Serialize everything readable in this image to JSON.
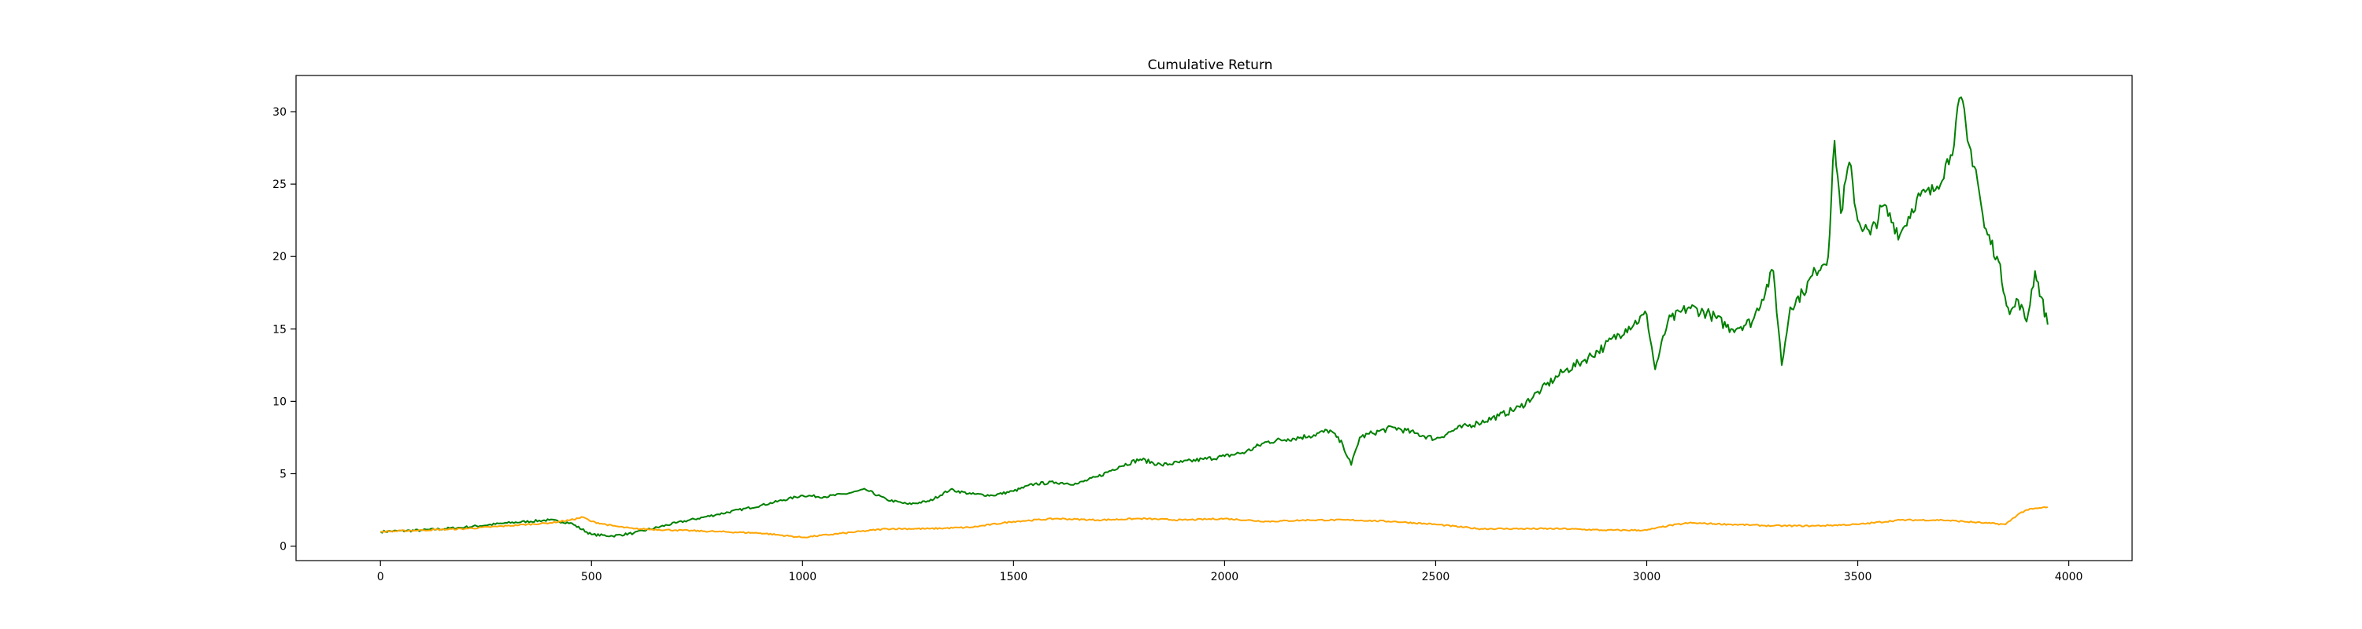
{
  "chart_data": {
    "type": "line",
    "title": "Cumulative Return",
    "xlabel": "",
    "ylabel": "",
    "xlim": [
      -200,
      4150
    ],
    "ylim": [
      -1,
      32.5
    ],
    "xticks": [
      0,
      500,
      1000,
      1500,
      2000,
      2500,
      3000,
      3500,
      4000
    ],
    "yticks": [
      0,
      5,
      10,
      15,
      20,
      25,
      30
    ],
    "grid": false,
    "legend": "none",
    "series": [
      {
        "color": "#008000",
        "x": [
          0,
          100,
          200,
          300,
          400,
          450,
          500,
          550,
          600,
          700,
          800,
          900,
          1000,
          1050,
          1100,
          1150,
          1200,
          1250,
          1300,
          1350,
          1400,
          1450,
          1500,
          1550,
          1600,
          1650,
          1700,
          1750,
          1800,
          1850,
          1900,
          1950,
          2000,
          2050,
          2100,
          2150,
          2200,
          2250,
          2280,
          2300,
          2320,
          2350,
          2400,
          2450,
          2500,
          2550,
          2600,
          2650,
          2700,
          2750,
          2800,
          2850,
          2900,
          2950,
          3000,
          3020,
          3050,
          3100,
          3150,
          3200,
          3250,
          3300,
          3320,
          3340,
          3370,
          3400,
          3430,
          3445,
          3460,
          3480,
          3500,
          3530,
          3560,
          3600,
          3640,
          3680,
          3720,
          3745,
          3760,
          3780,
          3800,
          3830,
          3860,
          3880,
          3900,
          3920,
          3950
        ],
        "y": [
          1.0,
          1.1,
          1.3,
          1.6,
          1.8,
          1.6,
          0.8,
          0.7,
          0.9,
          1.6,
          2.2,
          2.8,
          3.5,
          3.4,
          3.6,
          3.9,
          3.2,
          2.9,
          3.1,
          3.9,
          3.6,
          3.5,
          3.8,
          4.3,
          4.4,
          4.3,
          4.8,
          5.5,
          6.0,
          5.6,
          5.8,
          6.0,
          6.2,
          6.5,
          7.2,
          7.4,
          7.6,
          8.0,
          7.0,
          5.6,
          7.5,
          7.8,
          8.2,
          7.8,
          7.4,
          8.1,
          8.5,
          9.0,
          9.6,
          10.8,
          12.0,
          12.8,
          13.8,
          15.0,
          16.0,
          12.2,
          15.5,
          16.5,
          16.0,
          15.0,
          15.5,
          19.0,
          12.5,
          16.5,
          17.5,
          19.0,
          20.0,
          28.0,
          23.0,
          26.5,
          22.5,
          21.5,
          23.5,
          21.5,
          24.0,
          24.5,
          27.0,
          31.0,
          28.0,
          26.0,
          22.0,
          20.0,
          16.0,
          17.0,
          15.5,
          19.0,
          15.3
        ]
      },
      {
        "color": "#ffa500",
        "x": [
          0,
          100,
          200,
          300,
          400,
          450,
          480,
          500,
          550,
          600,
          700,
          800,
          900,
          1000,
          1100,
          1200,
          1300,
          1400,
          1500,
          1600,
          1700,
          1800,
          1900,
          2000,
          2100,
          2200,
          2300,
          2400,
          2500,
          2600,
          2700,
          2800,
          2900,
          3000,
          3050,
          3100,
          3200,
          3300,
          3400,
          3500,
          3600,
          3700,
          3800,
          3850,
          3880,
          3900,
          3950
        ],
        "y": [
          1.0,
          1.1,
          1.2,
          1.4,
          1.6,
          1.8,
          2.0,
          1.7,
          1.4,
          1.2,
          1.1,
          1.0,
          0.9,
          0.6,
          0.9,
          1.2,
          1.2,
          1.3,
          1.7,
          1.9,
          1.8,
          1.9,
          1.8,
          1.9,
          1.7,
          1.8,
          1.8,
          1.7,
          1.5,
          1.2,
          1.2,
          1.2,
          1.1,
          1.1,
          1.4,
          1.6,
          1.5,
          1.4,
          1.4,
          1.5,
          1.8,
          1.8,
          1.6,
          1.5,
          2.2,
          2.5,
          2.7
        ]
      }
    ]
  }
}
